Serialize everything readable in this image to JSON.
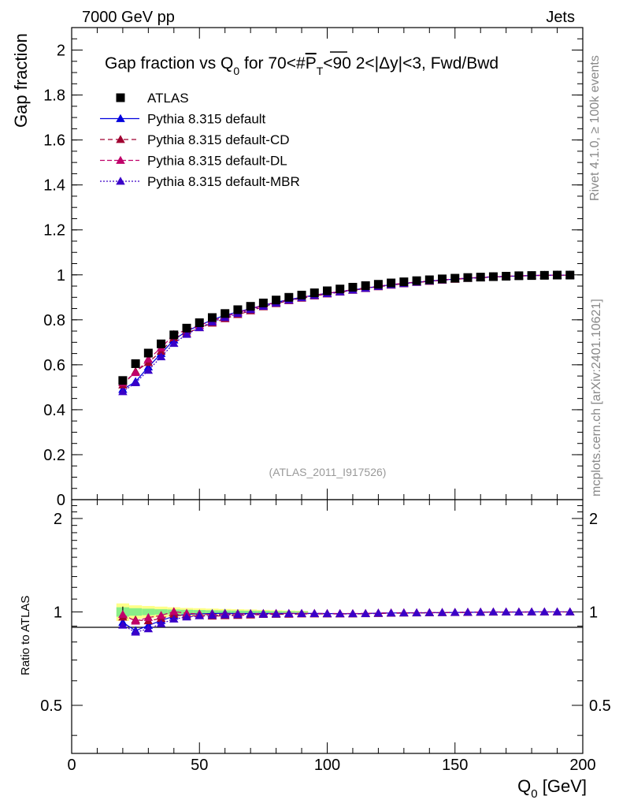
{
  "header": {
    "left": "7000 GeV pp",
    "right": "Jets"
  },
  "side_labels": {
    "rivet": "Rivet 4.1.0, ≥ 100k events",
    "mcplots": "mcplots.cern.ch [arXiv:2401.10621]"
  },
  "analysis_id": "(ATLAS_2011_I917526)",
  "colors": {
    "atlas": "#000000",
    "default": "#0000dd",
    "cd": "#a00030",
    "dl": "#c0006a",
    "mbr": "#3a00c8",
    "band_yellow": "#ffff88",
    "band_green": "#88ee88"
  },
  "chart_data": [
    {
      "type": "scatter",
      "title": "Gap fraction vs Q0 for 70<#PT<90  2<|Δy|<3, Fwd/Bwd",
      "title_parts": {
        "main": "Gap fraction vs Q",
        "sub0": "0",
        "mid": " for 70<#",
        "p": "P",
        "subT": "T",
        "rest": "<90  2<|Δy|<3, Fwd/Bwd"
      },
      "xlabel": "Q0 [GeV]",
      "xlabel_parts": {
        "main": "Q",
        "sub": "0",
        "unit": " [GeV]"
      },
      "ylabel": "Gap fraction",
      "xlim": [
        0,
        200
      ],
      "ylim": [
        0,
        2.1
      ],
      "yticks": [
        "0",
        "0.2",
        "0.4",
        "0.6",
        "0.8",
        "1",
        "1.2",
        "1.4",
        "1.6",
        "1.8",
        "2"
      ],
      "xticks": [
        "0",
        "50",
        "100",
        "150",
        "200"
      ],
      "x": [
        20,
        25,
        30,
        35,
        40,
        45,
        50,
        55,
        60,
        65,
        70,
        75,
        80,
        85,
        90,
        95,
        100,
        105,
        110,
        115,
        120,
        125,
        130,
        135,
        140,
        145,
        150,
        155,
        160,
        165,
        170,
        175,
        180,
        185,
        190,
        195
      ],
      "legend": [
        "ATLAS",
        "Pythia 8.315 default",
        "Pythia 8.315 default-CD",
        "Pythia 8.315 default-DL",
        "Pythia 8.315 default-MBR"
      ],
      "series": [
        {
          "name": "ATLAS",
          "values": [
            0.53,
            0.605,
            0.652,
            0.693,
            0.733,
            0.763,
            0.787,
            0.81,
            0.828,
            0.845,
            0.86,
            0.875,
            0.888,
            0.9,
            0.91,
            0.92,
            0.929,
            0.937,
            0.945,
            0.952,
            0.958,
            0.964,
            0.969,
            0.974,
            0.978,
            0.982,
            0.985,
            0.988,
            0.99,
            0.992,
            0.994,
            0.996,
            0.997,
            0.998,
            0.999,
            0.999
          ]
        },
        {
          "name": "Pythia 8.315 default",
          "values": [
            0.49,
            0.525,
            0.59,
            0.65,
            0.71,
            0.75,
            0.775,
            0.8,
            0.82,
            0.835,
            0.85,
            0.865,
            0.878,
            0.89,
            0.9,
            0.91,
            0.918,
            0.925,
            0.933,
            0.941,
            0.949,
            0.956,
            0.962,
            0.967,
            0.972,
            0.977,
            0.981,
            0.985,
            0.988,
            0.991,
            0.993,
            0.995,
            0.997,
            0.998,
            0.999,
            0.999
          ]
        },
        {
          "name": "Pythia 8.315 default-CD",
          "values": [
            0.51,
            0.57,
            0.61,
            0.66,
            0.72,
            0.74,
            0.765,
            0.785,
            0.805,
            0.823,
            0.84,
            0.858,
            0.872,
            0.885,
            0.896,
            0.906,
            0.915,
            0.923,
            0.931,
            0.939,
            0.947,
            0.954,
            0.96,
            0.966,
            0.971,
            0.976,
            0.98,
            0.984,
            0.987,
            0.99,
            0.993,
            0.995,
            0.996,
            0.998,
            0.998,
            0.999
          ]
        },
        {
          "name": "Pythia 8.315 default-DL",
          "values": [
            0.52,
            0.565,
            0.625,
            0.675,
            0.735,
            0.755,
            0.775,
            0.795,
            0.815,
            0.832,
            0.848,
            0.864,
            0.877,
            0.889,
            0.9,
            0.91,
            0.918,
            0.926,
            0.934,
            0.942,
            0.95,
            0.957,
            0.963,
            0.968,
            0.973,
            0.978,
            0.982,
            0.986,
            0.989,
            0.992,
            0.994,
            0.996,
            0.997,
            0.998,
            0.999,
            0.999
          ]
        },
        {
          "name": "Pythia 8.315 default-MBR",
          "values": [
            0.48,
            0.52,
            0.575,
            0.635,
            0.695,
            0.735,
            0.765,
            0.79,
            0.81,
            0.828,
            0.845,
            0.86,
            0.874,
            0.887,
            0.898,
            0.908,
            0.916,
            0.924,
            0.932,
            0.94,
            0.948,
            0.955,
            0.961,
            0.967,
            0.972,
            0.977,
            0.981,
            0.985,
            0.988,
            0.991,
            0.993,
            0.995,
            0.997,
            0.998,
            0.999,
            0.999
          ]
        }
      ]
    },
    {
      "type": "scatter",
      "title": "",
      "xlabel": "Q0 [GeV]",
      "ylabel": "Ratio to ATLAS",
      "xlim": [
        0,
        200
      ],
      "ylim": [
        0.35,
        2.3
      ],
      "yticks": [
        "0.5",
        "1",
        "2"
      ],
      "x": [
        20,
        25,
        30,
        35,
        40,
        45,
        50,
        55,
        60,
        65,
        70,
        75,
        80,
        85,
        90,
        95,
        100,
        105,
        110,
        115,
        120,
        125,
        130,
        135,
        140,
        145,
        150,
        155,
        160,
        165,
        170,
        175,
        180,
        185,
        190,
        195
      ],
      "band": {
        "x": [
          [
            17.5,
            22.5
          ],
          [
            22.5,
            27.5
          ],
          [
            27.5,
            32.5
          ],
          [
            32.5,
            37.5
          ],
          [
            37.5,
            42.5
          ],
          [
            42.5,
            47.5
          ],
          [
            47.5,
            52.5
          ],
          [
            52.5,
            57.5
          ],
          [
            57.5,
            62.5
          ],
          [
            62.5,
            67.5
          ],
          [
            67.5,
            72.5
          ],
          [
            72.5,
            77.5
          ],
          [
            77.5,
            82.5
          ],
          [
            82.5,
            87.5
          ],
          [
            87.5,
            92.5
          ]
        ],
        "yellow": [
          0.065,
          0.05,
          0.045,
          0.04,
          0.035,
          0.03,
          0.028,
          0.025,
          0.022,
          0.02,
          0.018,
          0.015,
          0.012,
          0.01,
          0.008
        ],
        "green": [
          0.035,
          0.028,
          0.024,
          0.02,
          0.018,
          0.016,
          0.014,
          0.012,
          0.011,
          0.01,
          0.009,
          0.008,
          0.006,
          0.005,
          0.004
        ]
      },
      "series": [
        {
          "name": "Pythia 8.315 default",
          "values": [
            0.925,
            0.87,
            0.905,
            0.938,
            0.969,
            0.983,
            0.985,
            0.988,
            0.99,
            0.988,
            0.988,
            0.989,
            0.989,
            0.989,
            0.989,
            0.989,
            0.988,
            0.987,
            0.987,
            0.988,
            0.991,
            0.992,
            0.993,
            0.993,
            0.994,
            0.995,
            0.996,
            0.997,
            0.998,
            0.999,
            0.999,
            0.999,
            1.0,
            1.0,
            1.0,
            1.0
          ]
        },
        {
          "name": "Pythia 8.315 default-CD",
          "values": [
            0.962,
            0.942,
            0.936,
            0.952,
            0.982,
            0.97,
            0.972,
            0.969,
            0.972,
            0.974,
            0.977,
            0.981,
            0.982,
            0.983,
            0.985,
            0.985,
            0.985,
            0.985,
            0.985,
            0.986,
            0.988,
            0.99,
            0.991,
            0.992,
            0.993,
            0.994,
            0.995,
            0.996,
            0.997,
            0.998,
            0.999,
            0.999,
            0.999,
            1.0,
            0.999,
            1.0
          ]
        },
        {
          "name": "Pythia 8.315 default-DL",
          "values": [
            0.981,
            0.934,
            0.959,
            0.974,
            1.003,
            0.99,
            0.985,
            0.981,
            0.984,
            0.985,
            0.986,
            0.987,
            0.988,
            0.988,
            0.989,
            0.989,
            0.988,
            0.988,
            0.988,
            0.989,
            0.992,
            0.993,
            0.994,
            0.994,
            0.995,
            0.996,
            0.997,
            0.998,
            0.999,
            1.0,
            1.0,
            1.0,
            1.0,
            1.0,
            1.0,
            1.0
          ]
        },
        {
          "name": "Pythia 8.315 default-MBR",
          "values": [
            0.906,
            0.86,
            0.882,
            0.916,
            0.948,
            0.963,
            0.972,
            0.975,
            0.978,
            0.98,
            0.983,
            0.983,
            0.984,
            0.986,
            0.987,
            0.987,
            0.986,
            0.986,
            0.986,
            0.987,
            0.99,
            0.991,
            0.992,
            0.993,
            0.994,
            0.995,
            0.996,
            0.997,
            0.998,
            0.999,
            0.999,
            0.999,
            1.0,
            1.0,
            1.0,
            1.0
          ]
        }
      ]
    }
  ]
}
